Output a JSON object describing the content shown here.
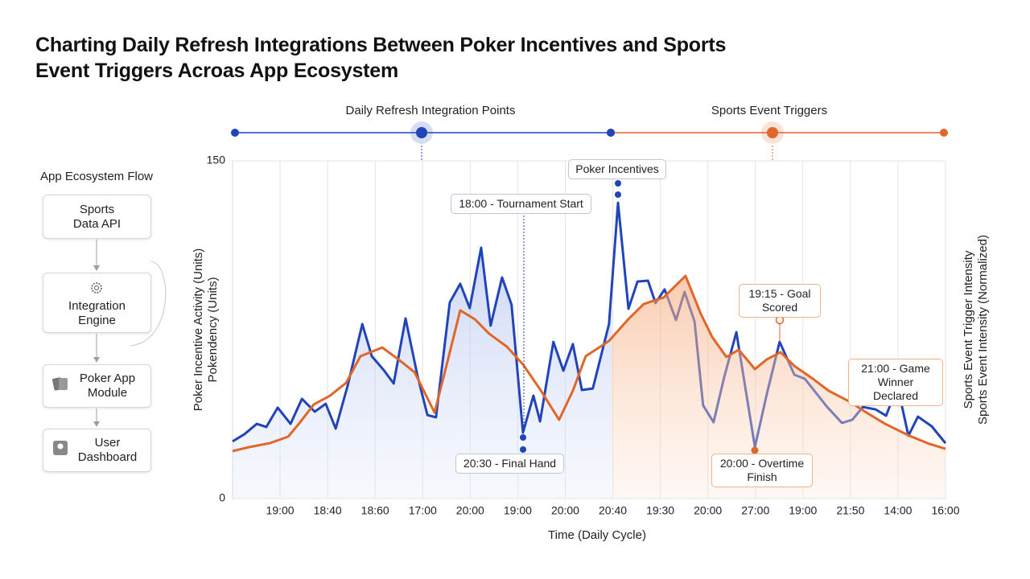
{
  "title": "Charting Daily Refresh Integrations Between Poker Incentives and Sports Event Triggers Acroas App Ecosystem",
  "flow": {
    "title": "App Ecosystem Flow",
    "steps": [
      "Sports Data API",
      "Integration Engine",
      "Poker App Module",
      "User Dashboard"
    ]
  },
  "chart_data": {
    "type": "line",
    "xlabel": "Time (Daily Cycle)",
    "ylabels": [
      "Poker Incentive Activity (Units)",
      "Pokendency (Units)"
    ],
    "y2labels": [
      "Sports Event Trigger Intensity",
      "Sports Event Intensity (Normalized)"
    ],
    "xlim": [
      0,
      15
    ],
    "xticks": [
      {
        "value": 1,
        "label": "19:00"
      },
      {
        "value": 2,
        "label": "18:40"
      },
      {
        "value": 3,
        "label": "18:60"
      },
      {
        "value": 4,
        "label": "17:00"
      },
      {
        "value": 5,
        "label": "20:00"
      },
      {
        "value": 6,
        "label": "19:00"
      },
      {
        "value": 7,
        "label": "20:00"
      },
      {
        "value": 8,
        "label": "20:40"
      },
      {
        "value": 9,
        "label": "19:30"
      },
      {
        "value": 10,
        "label": "20:00"
      },
      {
        "value": 11,
        "label": "27:00"
      },
      {
        "value": 12,
        "label": "19:00"
      },
      {
        "value": 13,
        "label": "21:50"
      },
      {
        "value": 14,
        "label": "14:00"
      },
      {
        "value": 15,
        "label": "16:00"
      }
    ],
    "ylim": [
      0,
      150
    ],
    "yticks": [
      0,
      150
    ],
    "grid": true,
    "series": [
      {
        "name": "Daily Refresh Integration Points",
        "color": "#2145b8",
        "x": [
          0,
          0.25,
          0.51,
          0.71,
          0.95,
          1.22,
          1.46,
          1.73,
          1.96,
          2.17,
          2.42,
          2.73,
          2.93,
          3.18,
          3.39,
          3.64,
          3.89,
          4.1,
          4.28,
          4.57,
          4.79,
          4.99,
          5.23,
          5.43,
          5.67,
          5.87,
          6.11,
          6.33,
          6.47,
          6.75,
          6.96,
          7.16,
          7.35,
          7.58,
          7.92,
          8.11,
          8.33,
          8.52,
          8.74,
          8.9,
          9.09,
          9.33,
          9.51,
          9.72,
          9.9,
          10.12,
          10.34,
          10.6,
          10.99,
          11.24,
          11.51,
          11.82,
          12.04,
          12.51,
          12.82,
          13.04,
          13.26,
          13.53,
          13.75,
          13.99,
          14.22,
          14.42,
          14.71,
          15
        ],
        "values": [
          25.4,
          28.6,
          33.2,
          31.8,
          40.4,
          33.2,
          44.3,
          38.6,
          42.1,
          31.1,
          50,
          77.5,
          63.2,
          57.1,
          51.1,
          80,
          54.6,
          37.1,
          36.1,
          87.1,
          95.4,
          84.6,
          111.4,
          76.8,
          98.2,
          86.1,
          29.3,
          45.7,
          34.3,
          69.6,
          56.8,
          68.6,
          48.2,
          48.9,
          77.5,
          131.4,
          84.3,
          96.4,
          96.8,
          86.8,
          92.9,
          79.3,
          91.8,
          78.6,
          41.4,
          33.9,
          53.6,
          73.9,
          22.9,
          46.4,
          69.6,
          55,
          53.2,
          40.7,
          33.6,
          35,
          40.7,
          39.6,
          36.8,
          50,
          27.9,
          36.4,
          32.1,
          24.6
        ]
      },
      {
        "name": "Sports Event Triggers",
        "color": "#e0662a",
        "x": [
          0,
          0.36,
          0.78,
          1.17,
          1.41,
          1.71,
          2.05,
          2.39,
          2.69,
          3.15,
          3.49,
          3.83,
          4.25,
          4.52,
          4.79,
          5.1,
          5.4,
          5.77,
          6.11,
          6.48,
          6.87,
          7.16,
          7.43,
          7.92,
          8.31,
          8.65,
          9.07,
          9.53,
          9.85,
          10.09,
          10.39,
          10.65,
          10.99,
          11.24,
          11.53,
          11.82,
          12.21,
          12.54,
          12.97,
          13.36,
          13.73,
          14.24,
          14.66,
          15
        ],
        "values": [
          21.1,
          22.9,
          24.6,
          27.5,
          33.6,
          41.8,
          45.7,
          51.4,
          63.2,
          67.1,
          61.8,
          56.1,
          38.2,
          60.7,
          83.6,
          79.6,
          73.2,
          67.5,
          59.6,
          48.2,
          35,
          47.9,
          63.2,
          70,
          79.3,
          86.4,
          89.3,
          98.9,
          82.1,
          71.8,
          62.9,
          66.1,
          57.5,
          61.8,
          65,
          58.9,
          53.2,
          47.9,
          43.2,
          37.9,
          33.2,
          27.9,
          24.3,
          22.1
        ]
      }
    ],
    "annotations": [
      "Poker Incentives",
      "18:00 - Tournament Start",
      "20:30 - Final Hand",
      "19:15 - Goal Scored",
      "20:00 - Overtime Finish",
      "21:00 - Game Winner Declared"
    ]
  }
}
